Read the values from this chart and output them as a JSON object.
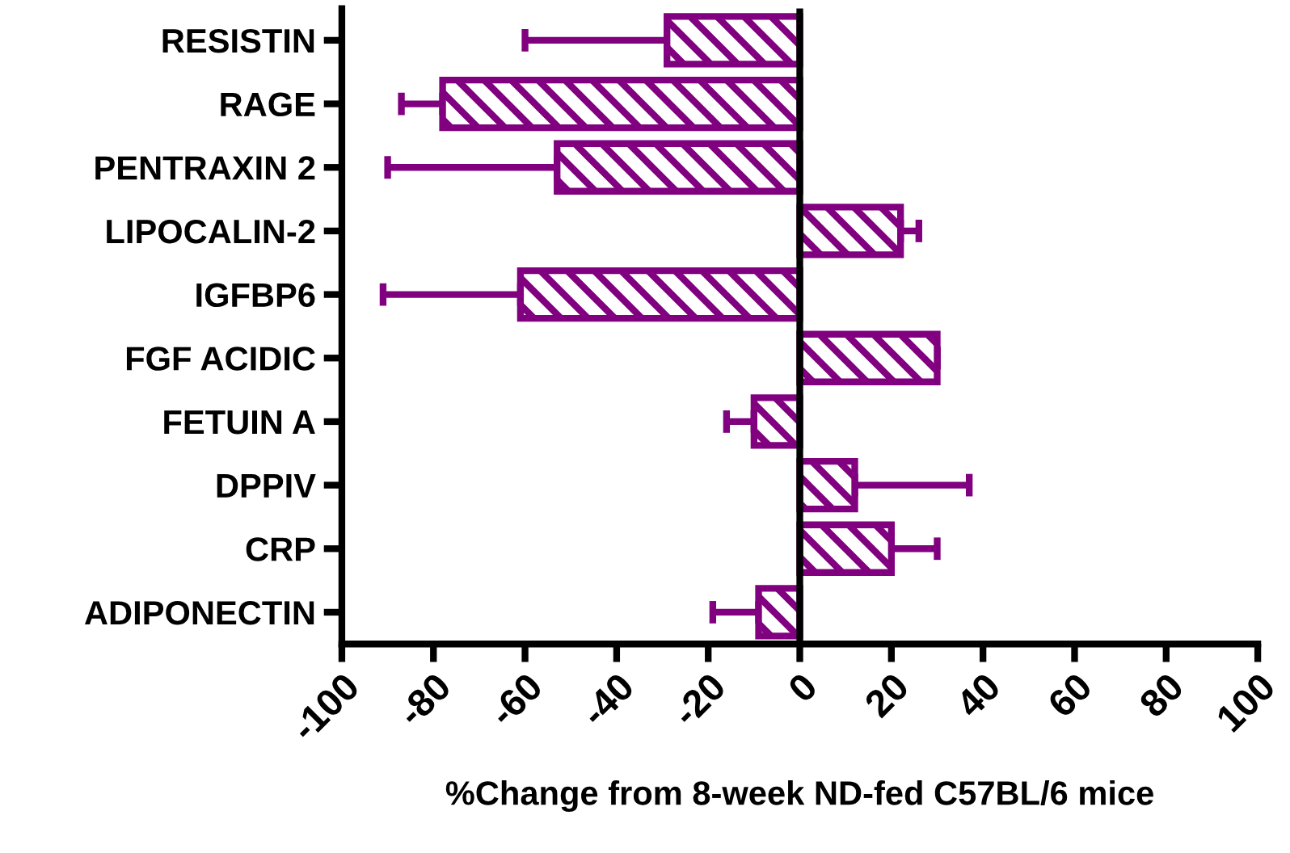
{
  "chart_data": {
    "type": "bar",
    "orientation": "horizontal",
    "categories": [
      "RESISTIN",
      "RAGE",
      "PENTRAXIN 2",
      "LIPOCALIN-2",
      "IGFBP6",
      "FGF ACIDIC",
      "FETUIN A",
      "DPPIV",
      "CRP",
      "ADIPONECTIN"
    ],
    "values": [
      -29,
      -78,
      -53,
      22,
      -61,
      30,
      -10,
      12,
      20,
      -9
    ],
    "errors": [
      [
        -60,
        -29
      ],
      [
        -87,
        -78
      ],
      [
        -90,
        -53
      ],
      [
        22,
        26
      ],
      [
        -91,
        -61
      ],
      null,
      [
        -16,
        -10
      ],
      [
        12,
        37
      ],
      [
        20,
        30
      ],
      [
        -19,
        -9
      ]
    ],
    "color": "#800080",
    "xlabel": "%Change from 8-week ND-fed C57BL/6 mice",
    "xlim": [
      -100,
      100
    ],
    "xticks": [
      -100,
      -80,
      -60,
      -40,
      -20,
      0,
      20,
      40,
      60,
      80,
      100
    ],
    "ref_lines": [
      {
        "axis": "x",
        "value": 0,
        "color": "#000000"
      }
    ],
    "grid": false
  }
}
